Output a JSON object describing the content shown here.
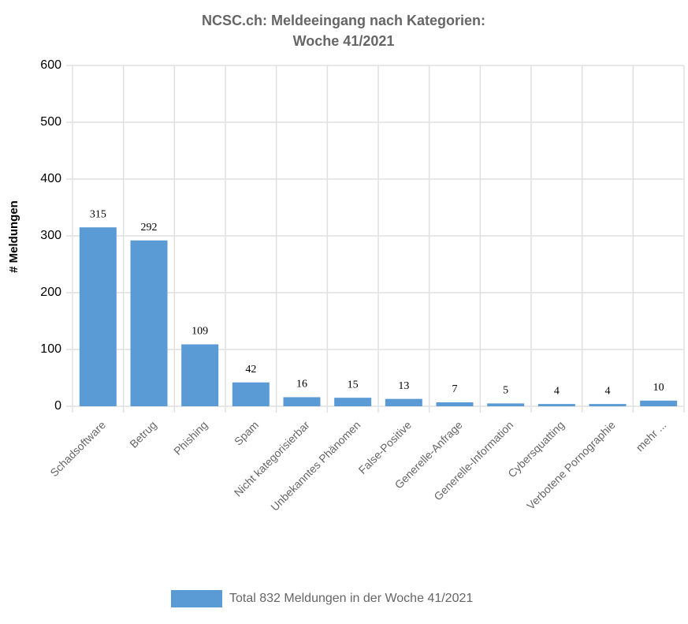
{
  "chart_data": {
    "type": "bar",
    "title": [
      "NCSC.ch: Meldeeingang nach Kategorien:",
      "Woche 41/2021"
    ],
    "y_label": "# Meldungen",
    "categories": [
      "Schadsoftware",
      "Betrug",
      "Phishing",
      "Spam",
      "Nicht kategorisierbar",
      "Unbekanntes Phänomen",
      "False-Positive",
      "Generelle-Anfrage",
      "Generelle-Information",
      "Cybersquatting",
      "Verbotene Pornographie",
      "mehr ..."
    ],
    "series": [
      {
        "name": "Total 832 Meldungen in der Woche 41/2021",
        "color": "#5b9bd5",
        "values": [
          315,
          292,
          109,
          42,
          16,
          15,
          13,
          7,
          5,
          4,
          4,
          10
        ]
      }
    ],
    "ylim": [
      0,
      600
    ],
    "yticks": [
      0,
      100,
      200,
      300,
      400,
      500,
      600
    ],
    "grid": true,
    "legend": "bottom"
  }
}
